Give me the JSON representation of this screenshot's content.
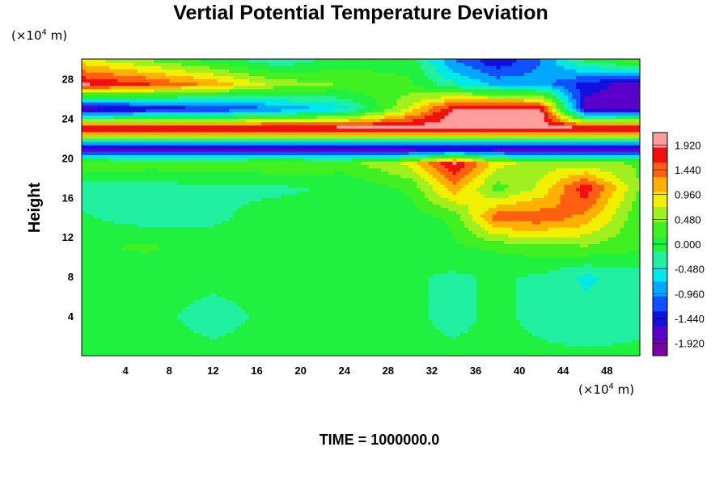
{
  "chart_data": {
    "type": "heatmap",
    "title": "Vertial Potential Temperature Deviation",
    "ylabel": "Height",
    "xlabel": "",
    "y_unit": {
      "prefix": "(×10",
      "exp": "4",
      "suffix": " m)"
    },
    "x_unit": {
      "prefix": "(×10",
      "exp": "4",
      "suffix": " m)"
    },
    "xlim": [
      0,
      51
    ],
    "ylim": [
      0,
      30
    ],
    "x_ticks": [
      "4",
      "8",
      "12",
      "16",
      "20",
      "24",
      "28",
      "32",
      "36",
      "40",
      "44",
      "48"
    ],
    "y_ticks": [
      "4",
      "8",
      "12",
      "16",
      "20",
      "24",
      "28"
    ],
    "colorbar": {
      "ticks": [
        "1.920",
        "1.440",
        "0.960",
        "0.480",
        "0.000",
        "-0.480",
        "-0.960",
        "-1.440",
        "-1.920"
      ],
      "range": [
        -2.16,
        2.16
      ],
      "colors": [
        "#7b00a8",
        "#5a00c8",
        "#1010e0",
        "#1050ff",
        "#00a8ff",
        "#00e8e8",
        "#20f0a0",
        "#20f040",
        "#40f020",
        "#a0f020",
        "#f0f000",
        "#ffb000",
        "#ff6010",
        "#f01010",
        "#ff9c9c"
      ]
    },
    "approx_field": {
      "x": [
        0,
        6,
        12,
        18,
        24,
        30,
        34,
        38,
        42,
        46,
        51
      ],
      "y": [
        0,
        4,
        8,
        11,
        14,
        17,
        19.5,
        21,
        23,
        25,
        27.5,
        30
      ],
      "z": [
        [
          -0.1,
          -0.1,
          -0.1,
          -0.1,
          -0.1,
          -0.1,
          -0.1,
          -0.1,
          -0.1,
          -0.1,
          -0.1
        ],
        [
          -0.1,
          -0.1,
          -0.2,
          -0.1,
          -0.1,
          -0.1,
          -0.2,
          -0.1,
          -0.2,
          -0.3,
          -0.2
        ],
        [
          -0.1,
          -0.1,
          -0.1,
          -0.1,
          -0.1,
          -0.1,
          -0.2,
          -0.1,
          -0.2,
          -0.5,
          -0.3
        ],
        [
          0.1,
          0.2,
          0.0,
          0.0,
          0.0,
          0.0,
          0.1,
          0.2,
          0.3,
          0.4,
          0.2
        ],
        [
          -0.1,
          -0.3,
          -0.2,
          0.0,
          0.0,
          0.0,
          0.2,
          1.5,
          1.5,
          1.2,
          0.2
        ],
        [
          -0.3,
          -0.3,
          -0.2,
          -0.2,
          -0.1,
          0.2,
          1.2,
          0.3,
          0.8,
          1.8,
          0.4
        ],
        [
          0.4,
          0.3,
          0.3,
          0.4,
          0.3,
          0.8,
          1.9,
          0.8,
          0.6,
          0.5,
          0.4
        ],
        [
          -1.9,
          -1.9,
          -1.9,
          -1.9,
          -1.9,
          -1.9,
          -1.9,
          -1.9,
          -1.9,
          -1.9,
          -1.9
        ],
        [
          2.1,
          2.1,
          2.1,
          2.1,
          2.1,
          2.1,
          2.1,
          2.1,
          2.1,
          2.1,
          2.1
        ],
        [
          -1.9,
          -1.6,
          -1.4,
          -1.0,
          -0.6,
          0.8,
          1.9,
          2.0,
          1.9,
          -1.8,
          -1.7
        ],
        [
          1.9,
          1.6,
          1.2,
          0.6,
          0.4,
          0.2,
          -0.4,
          -0.8,
          -0.9,
          -1.4,
          -1.8
        ],
        [
          0.8,
          0.4,
          0.0,
          -0.4,
          0.0,
          0.0,
          -1.0,
          -1.6,
          -1.0,
          0.0,
          0.4
        ]
      ]
    },
    "footer": "TIME = 1000000.0"
  },
  "colors": {
    "background": "#ffffff",
    "text": "#000000"
  }
}
